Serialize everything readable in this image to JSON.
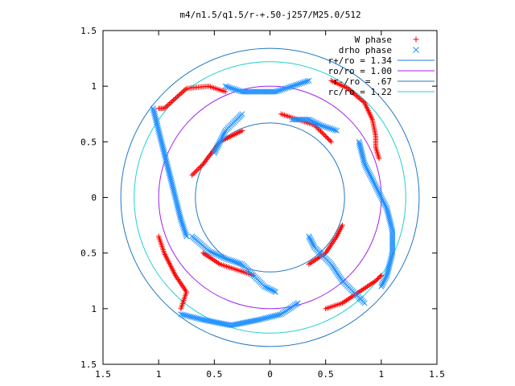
{
  "chart_data": {
    "type": "scatter",
    "title": "m4/n1.5/q1.5/r-+.50-j257/M25.0/512",
    "xlabel": "",
    "ylabel": "",
    "xlim": [
      -1.5,
      1.5
    ],
    "ylim": [
      -1.5,
      1.5
    ],
    "grid": false,
    "legend_position": "top-right",
    "x_ticks": [
      -1.5,
      -1,
      -0.5,
      0,
      0.5,
      1,
      1.5
    ],
    "x_tick_labels": [
      "1.5",
      "1",
      "0.5",
      "0",
      "0.5",
      "1",
      "1.5"
    ],
    "y_ticks": [
      1.5,
      1,
      0.5,
      0,
      -0.5,
      -1,
      -1.5
    ],
    "y_tick_labels": [
      "1.5",
      "1",
      "0.5",
      "0",
      "0.5",
      "1",
      "1.5"
    ],
    "circles": [
      {
        "name": "r+/ro = 1.34",
        "r": 1.34,
        "color": "#1f78c8"
      },
      {
        "name": "ro/ro = 1.00",
        "r": 1.0,
        "color": "#a020f0"
      },
      {
        "name": "r-/ro = .67",
        "r": 0.67,
        "color": "#1f78c8"
      },
      {
        "name": "rc/ro = 1.22",
        "r": 1.22,
        "color": "#20d0d0"
      }
    ],
    "series": [
      {
        "name": "W phase",
        "marker": "plus",
        "color": "#ff0000",
        "arms": [
          [
            [
              0.55,
              1.05
            ],
            [
              0.7,
              0.98
            ],
            [
              0.85,
              0.85
            ],
            [
              0.92,
              0.7
            ],
            [
              0.95,
              0.55
            ],
            [
              0.95,
              0.45
            ],
            [
              0.98,
              0.35
            ]
          ],
          [
            [
              -0.4,
              0.95
            ],
            [
              -0.55,
              1.0
            ],
            [
              -0.75,
              0.98
            ],
            [
              -0.95,
              0.8
            ],
            [
              -1.0,
              0.8
            ]
          ],
          [
            [
              -1.0,
              -0.35
            ],
            [
              -0.95,
              -0.5
            ],
            [
              -0.85,
              -0.7
            ],
            [
              -0.75,
              -0.85
            ],
            [
              -0.8,
              -1.0
            ]
          ],
          [
            [
              0.5,
              -1.0
            ],
            [
              0.65,
              -0.95
            ],
            [
              0.8,
              -0.85
            ],
            [
              0.95,
              -0.75
            ],
            [
              1.0,
              -0.7
            ]
          ],
          [
            [
              0.1,
              0.75
            ],
            [
              0.25,
              0.7
            ],
            [
              0.4,
              0.65
            ],
            [
              0.5,
              0.55
            ],
            [
              0.55,
              0.5
            ]
          ],
          [
            [
              -0.25,
              0.6
            ],
            [
              -0.45,
              0.5
            ],
            [
              -0.6,
              0.3
            ],
            [
              -0.7,
              0.2
            ]
          ],
          [
            [
              -0.6,
              -0.5
            ],
            [
              -0.45,
              -0.6
            ],
            [
              -0.3,
              -0.65
            ],
            [
              -0.15,
              -0.7
            ]
          ],
          [
            [
              0.65,
              -0.25
            ],
            [
              0.6,
              -0.35
            ],
            [
              0.5,
              -0.5
            ],
            [
              0.35,
              -0.6
            ]
          ]
        ]
      },
      {
        "name": "drho phase",
        "marker": "cross",
        "color": "#1e90ff",
        "arms": [
          [
            [
              -0.7,
              -0.35
            ],
            [
              -0.55,
              -0.48
            ],
            [
              -0.4,
              -0.55
            ],
            [
              -0.25,
              -0.6
            ],
            [
              -0.15,
              -0.7
            ],
            [
              -0.05,
              -0.8
            ],
            [
              0.05,
              -0.85
            ]
          ],
          [
            [
              -1.05,
              0.8
            ],
            [
              -1.0,
              0.6
            ],
            [
              -0.95,
              0.4
            ],
            [
              -0.9,
              0.2
            ],
            [
              -0.85,
              0.0
            ],
            [
              -0.8,
              -0.2
            ],
            [
              -0.75,
              -0.35
            ]
          ],
          [
            [
              0.25,
              -0.95
            ],
            [
              0.1,
              -1.05
            ],
            [
              -0.1,
              -1.1
            ],
            [
              -0.35,
              -1.15
            ],
            [
              -0.6,
              -1.1
            ],
            [
              -0.8,
              -1.05
            ]
          ],
          [
            [
              0.8,
              0.5
            ],
            [
              0.85,
              0.3
            ],
            [
              0.95,
              0.1
            ],
            [
              1.05,
              -0.1
            ],
            [
              1.1,
              -0.3
            ],
            [
              1.1,
              -0.5
            ],
            [
              1.05,
              -0.7
            ],
            [
              1.0,
              -0.8
            ]
          ],
          [
            [
              0.35,
              -0.35
            ],
            [
              0.4,
              -0.45
            ],
            [
              0.55,
              -0.6
            ],
            [
              0.65,
              -0.75
            ],
            [
              0.85,
              -0.95
            ]
          ],
          [
            [
              -0.4,
              1.0
            ],
            [
              -0.25,
              0.95
            ],
            [
              -0.1,
              0.95
            ],
            [
              0.05,
              0.95
            ],
            [
              0.2,
              1.0
            ],
            [
              0.35,
              1.05
            ]
          ],
          [
            [
              -0.5,
              0.4
            ],
            [
              -0.45,
              0.5
            ],
            [
              -0.4,
              0.6
            ],
            [
              -0.3,
              0.7
            ],
            [
              -0.25,
              0.75
            ]
          ],
          [
            [
              0.2,
              0.7
            ],
            [
              0.35,
              0.7
            ],
            [
              0.45,
              0.65
            ],
            [
              0.6,
              0.6
            ]
          ]
        ]
      }
    ]
  }
}
